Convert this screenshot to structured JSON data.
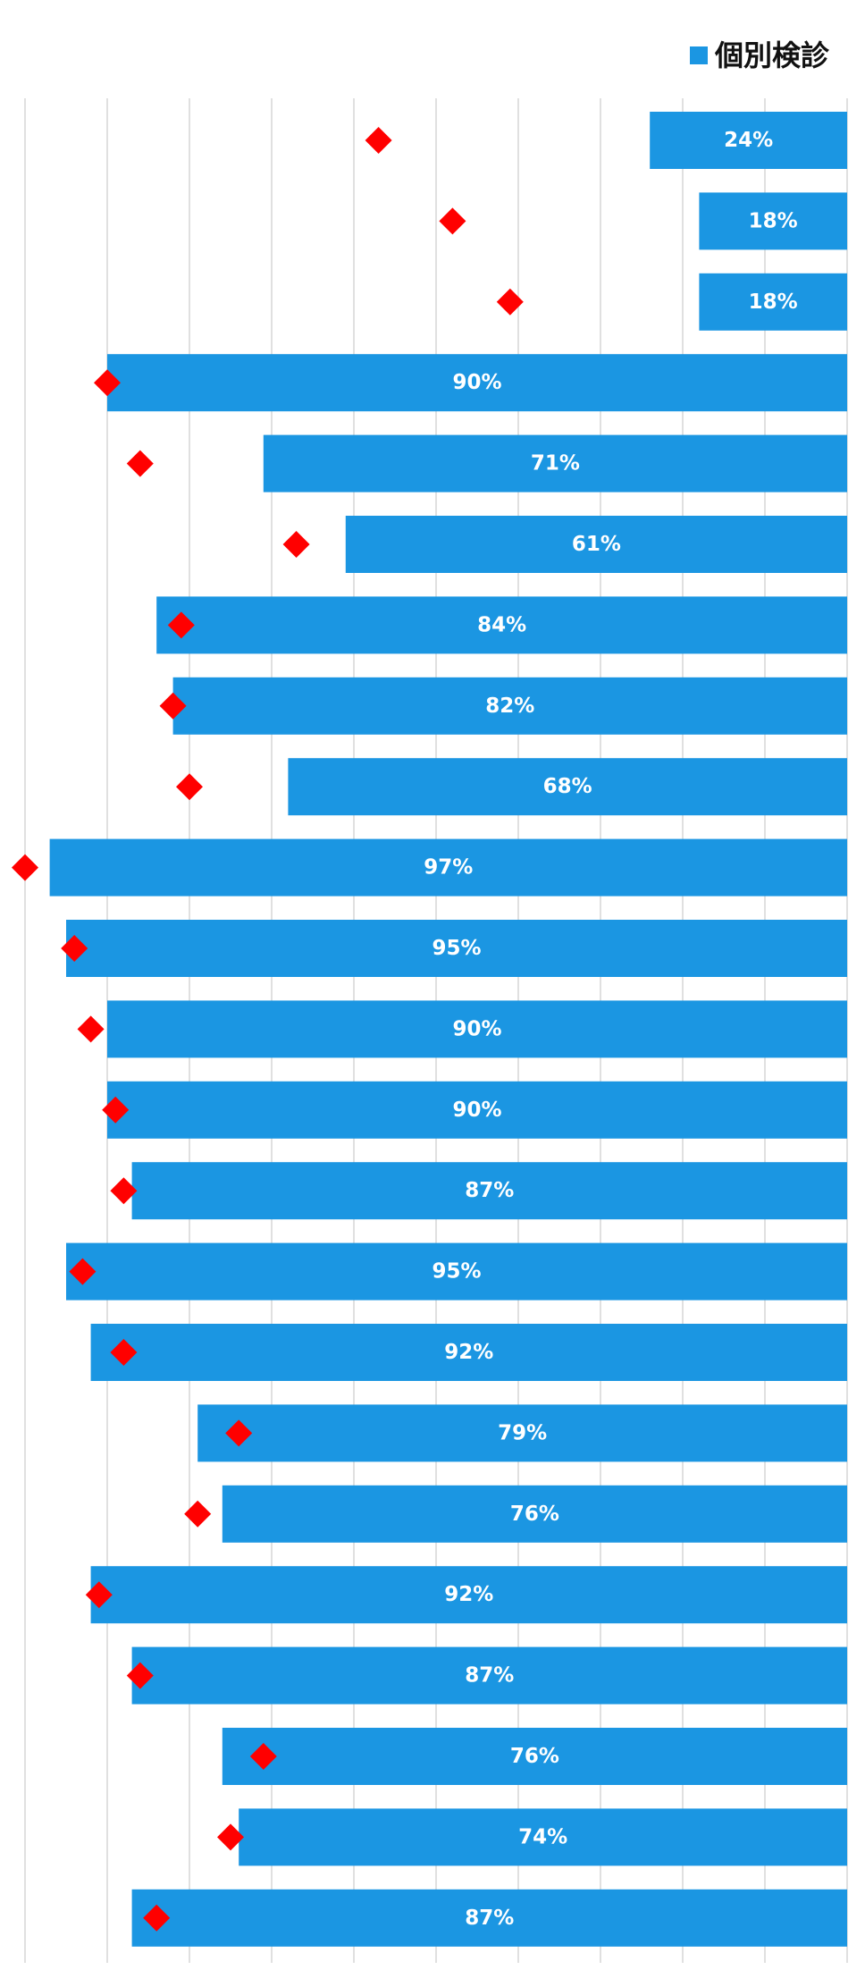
{
  "legend": {
    "label": "個別検診",
    "color": "#1b96e2"
  },
  "chart_data": {
    "type": "bar",
    "orientation": "horizontal",
    "direction": "right-to-left",
    "xlim": [
      0,
      100
    ],
    "grid": true,
    "legend_position": "top-right",
    "series": [
      {
        "name": "個別検診",
        "color": "#1b96e2",
        "values": [
          24,
          18,
          18,
          90,
          71,
          61,
          84,
          82,
          68,
          97,
          95,
          90,
          90,
          87,
          95,
          92,
          79,
          76,
          92,
          87,
          76,
          74,
          87
        ],
        "labels": [
          "24%",
          "18%",
          "18%",
          "90%",
          "71%",
          "61%",
          "84%",
          "82%",
          "68%",
          "97%",
          "95%",
          "90%",
          "90%",
          "87%",
          "95%",
          "92%",
          "79%",
          "76%",
          "92%",
          "87%",
          "76%",
          "74%",
          "87%"
        ]
      },
      {
        "marker": "diamond",
        "color": "#ff0000",
        "values": [
          57,
          48,
          41,
          90,
          86,
          67,
          81,
          82,
          80,
          100,
          94,
          92,
          89,
          88,
          93,
          88,
          74,
          79,
          91,
          86,
          71,
          75,
          84
        ]
      }
    ]
  }
}
